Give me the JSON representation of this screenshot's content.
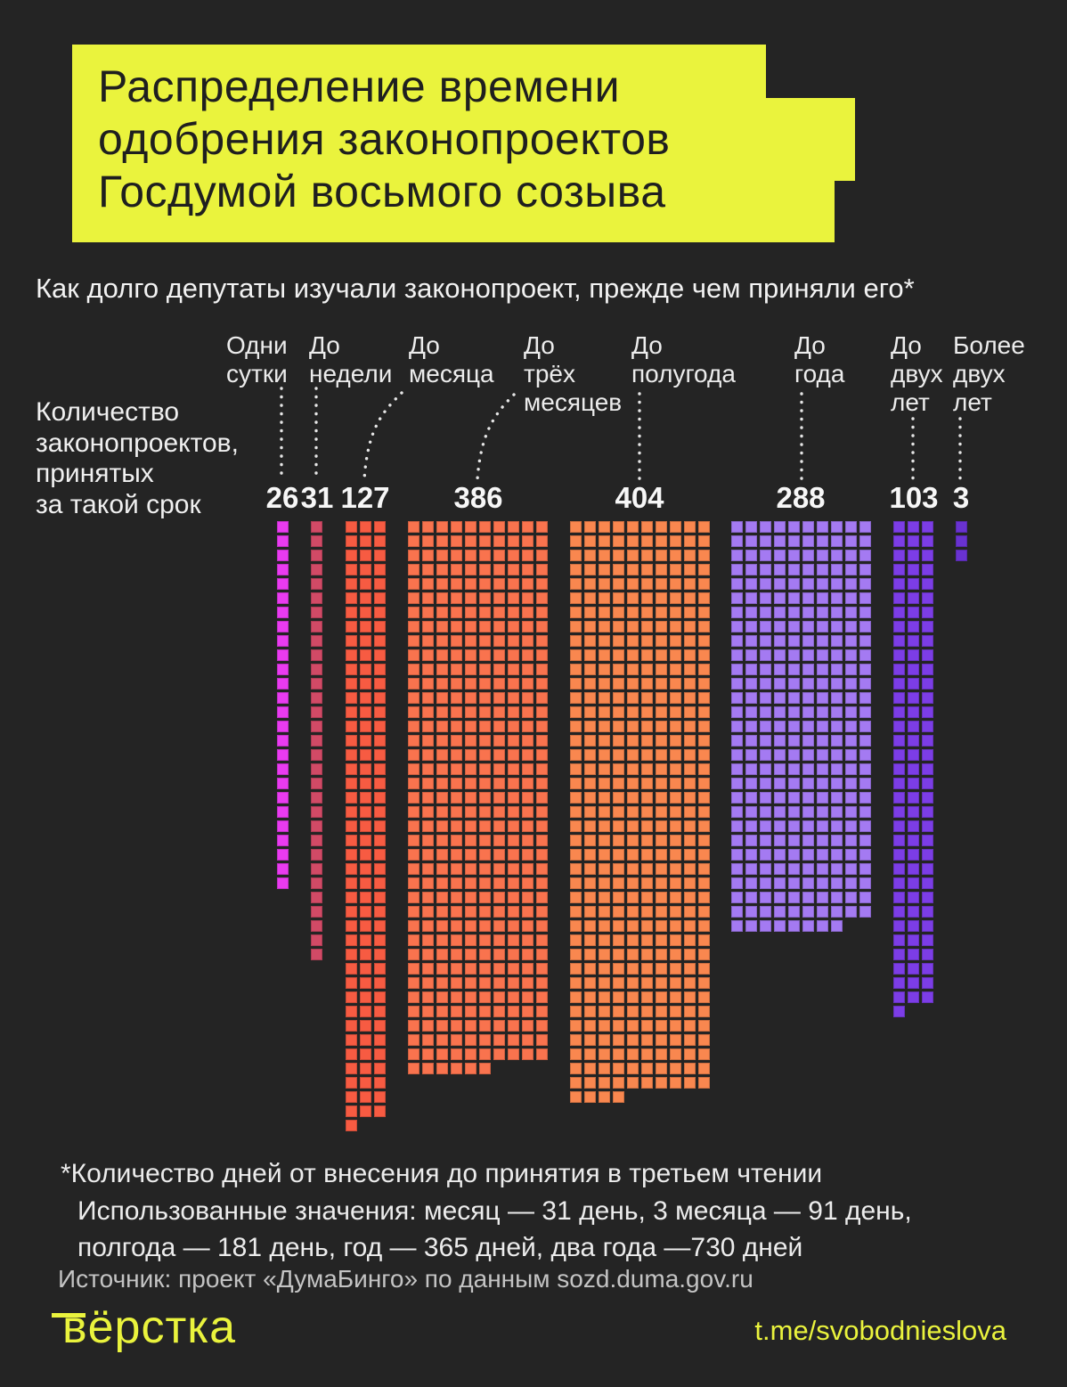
{
  "title": {
    "lines": [
      "Распределение времени",
      "одобрения законопроектов",
      "Госдумой восьмого созыва"
    ]
  },
  "subtitle": "Как долго депутаты изучали законопроект, прежде чем приняли его*",
  "chart_data": {
    "type": "bar",
    "variant": "waffle-pictogram",
    "title": "Распределение времени одобрения законопроектов Госдумой восьмого созыва",
    "ylabel": "Количество законопроектов, принятых за такой срок",
    "ylabel_lines": [
      "Количество",
      "законопроектов,",
      "принятых",
      "за такой срок"
    ],
    "categories": [
      "Одни сутки",
      "До недели",
      "До месяца",
      "До трёх месяцев",
      "До полугода",
      "До года",
      "До двух лет",
      "Более двух лет"
    ],
    "category_label_lines": [
      [
        "Одни",
        "сутки"
      ],
      [
        "До",
        "недели"
      ],
      [
        "До",
        "месяца"
      ],
      [
        "До",
        "трёх",
        "месяцев"
      ],
      [
        "До",
        "полугода"
      ],
      [
        "До",
        "года"
      ],
      [
        "До",
        "двух",
        "лет"
      ],
      [
        "Более",
        "двух",
        "лет"
      ]
    ],
    "values": [
      26,
      31,
      127,
      386,
      404,
      288,
      103,
      3
    ],
    "squares_per_row": [
      1,
      1,
      3,
      10,
      10,
      10,
      3,
      1
    ],
    "colors": [
      "#E93BF0",
      "#D14A66",
      "#F75B42",
      "#F9734E",
      "#F9874F",
      "#A47AF2",
      "#7C3DE6",
      "#6932D1"
    ],
    "legend_position": "none",
    "grid": "off"
  },
  "footnote": {
    "line1": "*Количество дней от внесения до принятия в третьем чтении",
    "line2": "Использованные значения: месяц — 31 день, 3 месяца — 91 день,",
    "line3": "полгода — 181 день, год — 365 дней, два года —730 дней"
  },
  "source": "Источник: проект «ДумаБинго» по данным sozd.duma.gov.ru",
  "footer": {
    "logo": "вёрстка",
    "link": "t.me/svobodnieslova"
  },
  "colors": {
    "background": "#242424",
    "accent_yellow": "#EAF33D",
    "title_text": "#1F1F1F",
    "body_text": "#F0F0F0",
    "muted_text": "#C4C4C4",
    "leader_dots": "#E6E6E6"
  }
}
